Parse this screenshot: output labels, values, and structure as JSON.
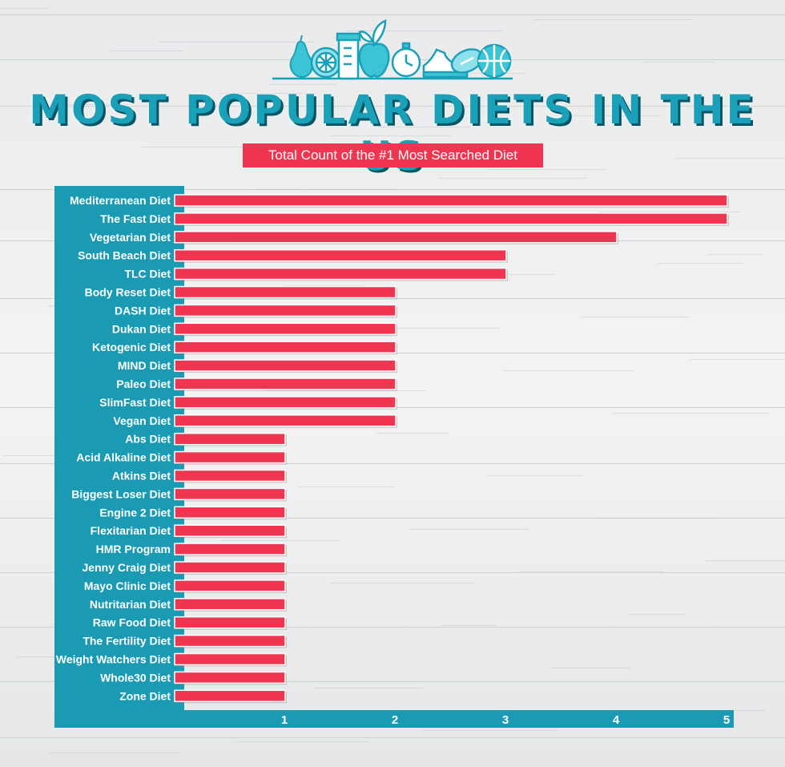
{
  "header": {
    "title": "MOST POPULAR DIETS IN THE US",
    "subtitle": "Total Count of the #1 Most Searched Diet"
  },
  "icons": [
    "pear-icon",
    "orange-slice-icon",
    "measuring-jar-icon",
    "apple-icon",
    "stopwatch-icon",
    "sneaker-icon",
    "football-icon",
    "basketball-icon"
  ],
  "colors": {
    "panel": "#1a9ab3",
    "bar": "#ef3550",
    "title": "#1aa0b8",
    "subtitle_bg": "#ef3550"
  },
  "chart_data": {
    "type": "bar",
    "orientation": "horizontal",
    "title": "Most Popular Diets in the US",
    "subtitle": "Total Count of the #1 Most Searched Diet",
    "categories": [
      "Mediterranean Diet",
      "The Fast Diet",
      "Vegetarian Diet",
      "South Beach Diet",
      "TLC Diet",
      "Body Reset Diet",
      "DASH Diet",
      "Dukan Diet",
      "Ketogenic Diet",
      "MIND Diet",
      "Paleo Diet",
      "SlimFast Diet",
      "Vegan Diet",
      "Abs Diet",
      "Acid Alkaline Diet",
      "Atkins Diet",
      "Biggest Loser Diet",
      "Engine 2 Diet",
      "Flexitarian Diet",
      "HMR Program",
      "Jenny Craig Diet",
      "Mayo Clinic Diet",
      "Nutritarian Diet",
      "Raw Food Diet",
      "The Fertility Diet",
      "Weight Watchers Diet",
      "Whole30 Diet",
      "Zone Diet"
    ],
    "values": [
      5,
      5,
      4,
      3,
      3,
      2,
      2,
      2,
      2,
      2,
      2,
      2,
      2,
      1,
      1,
      1,
      1,
      1,
      1,
      1,
      1,
      1,
      1,
      1,
      1,
      1,
      1,
      1
    ],
    "xticks": [
      1,
      2,
      3,
      4,
      5
    ],
    "xlim": [
      0,
      5
    ],
    "xlabel": "",
    "ylabel": "",
    "grid": false,
    "legend": "none"
  }
}
